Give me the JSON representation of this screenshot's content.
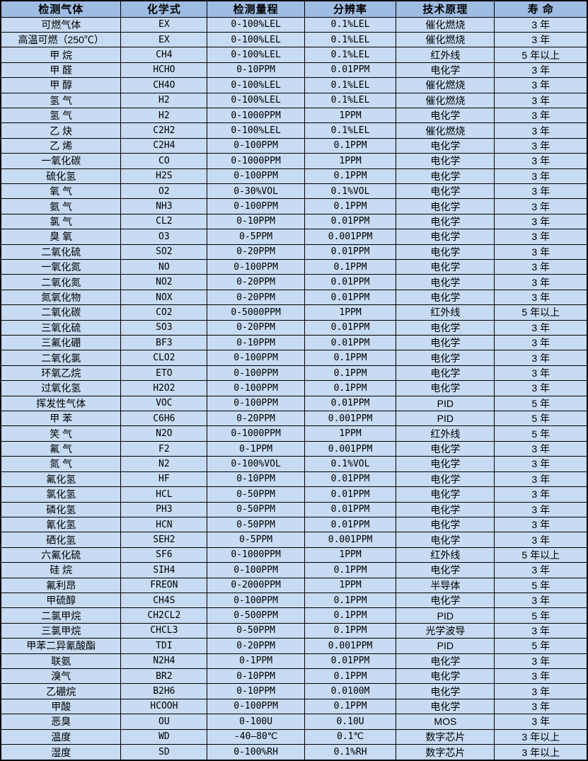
{
  "colors": {
    "header_bg": "#9fbce2",
    "row_bg": "#c7dbf2",
    "border": "#000000",
    "text": "#000000"
  },
  "table": {
    "columns": [
      "检测气体",
      "化学式",
      "检测量程",
      "分辨率",
      "技术原理",
      "寿 命"
    ],
    "rows": [
      [
        "可燃气体",
        "EX",
        "0-100%LEL",
        "0.1%LEL",
        "催化燃烧",
        "3 年"
      ],
      [
        "高温可燃（250℃）",
        "EX",
        "0-100%LEL",
        "0.1%LEL",
        "催化燃烧",
        "3 年"
      ],
      [
        "甲 烷",
        "CH4",
        "0-100%LEL",
        "0.1%LEL",
        "红外线",
        "5 年以上"
      ],
      [
        "甲 醛",
        "HCHO",
        "0-10PPM",
        "0.01PPM",
        "电化学",
        "3 年"
      ],
      [
        "甲 醇",
        "CH4O",
        "0-100%LEL",
        "0.1%LEL",
        "催化燃烧",
        "3 年"
      ],
      [
        "氢 气",
        "H2",
        "0-100%LEL",
        "0.1%LEL",
        "催化燃烧",
        "3 年"
      ],
      [
        "氢 气",
        "H2",
        "0-1000PPM",
        "1PPM",
        "电化学",
        "3 年"
      ],
      [
        "乙 炔",
        "C2H2",
        "0-100%LEL",
        "0.1%LEL",
        "催化燃烧",
        "3 年"
      ],
      [
        "乙 烯",
        "C2H4",
        "0-100PPM",
        "0.1PPM",
        "电化学",
        "3 年"
      ],
      [
        "一氧化碳",
        "CO",
        "0-1000PPM",
        "1PPM",
        "电化学",
        "3 年"
      ],
      [
        "硫化氢",
        "H2S",
        "0-100PPM",
        "0.1PPM",
        "电化学",
        "3 年"
      ],
      [
        "氧 气",
        "O2",
        "0-30%VOL",
        "0.1%VOL",
        "电化学",
        "3 年"
      ],
      [
        "氨 气",
        "NH3",
        "0-100PPM",
        "0.1PPM",
        "电化学",
        "3 年"
      ],
      [
        "氯 气",
        "CL2",
        "0-10PPM",
        "0.01PPM",
        "电化学",
        "3 年"
      ],
      [
        "臭 氧",
        "O3",
        "0-5PPM",
        "0.001PPM",
        "电化学",
        "3 年"
      ],
      [
        "二氧化硫",
        "SO2",
        "0-20PPM",
        "0.01PPM",
        "电化学",
        "3 年"
      ],
      [
        "一氧化氮",
        "NO",
        "0-100PPM",
        "0.1PPM",
        "电化学",
        "3 年"
      ],
      [
        "二氧化氮",
        "NO2",
        "0-20PPM",
        "0.01PPM",
        "电化学",
        "3 年"
      ],
      [
        "氮氧化物",
        "NOX",
        "0-20PPM",
        "0.01PPM",
        "电化学",
        "3 年"
      ],
      [
        "二氧化碳",
        "CO2",
        "0-5000PPM",
        "1PPM",
        "红外线",
        "5 年以上"
      ],
      [
        "三氧化硫",
        "SO3",
        "0-20PPM",
        "0.01PPM",
        "电化学",
        "3 年"
      ],
      [
        "三氟化硼",
        "BF3",
        "0-10PPM",
        "0.01PPM",
        "电化学",
        "3 年"
      ],
      [
        "二氧化氯",
        "CLO2",
        "0-100PPM",
        "0.1PPM",
        "电化学",
        "3 年"
      ],
      [
        "环氧乙烷",
        "ETO",
        "0-100PPM",
        "0.1PPM",
        "电化学",
        "3 年"
      ],
      [
        "过氧化氢",
        "H2O2",
        "0-100PPM",
        "0.1PPM",
        "电化学",
        "3 年"
      ],
      [
        "挥发性气体",
        "VOC",
        "0-100PPM",
        "0.01PPM",
        "PID",
        "5 年"
      ],
      [
        "甲 苯",
        "C6H6",
        "0-20PPM",
        "0.001PPM",
        "PID",
        "5 年"
      ],
      [
        "笑 气",
        "N2O",
        "0-1000PPM",
        "1PPM",
        "红外线",
        "5 年"
      ],
      [
        "氟 气",
        "F2",
        "0-1PPM",
        "0.001PPM",
        "电化学",
        "3 年"
      ],
      [
        "氮 气",
        "N2",
        "0-100%VOL",
        "0.1%VOL",
        "电化学",
        "3 年"
      ],
      [
        "氟化氢",
        "HF",
        "0-10PPM",
        "0.01PPM",
        "电化学",
        "3 年"
      ],
      [
        "氯化氢",
        "HCL",
        "0-50PPM",
        "0.01PPM",
        "电化学",
        "3 年"
      ],
      [
        "磷化氢",
        "PH3",
        "0-50PPM",
        "0.01PPM",
        "电化学",
        "3 年"
      ],
      [
        "氰化氢",
        "HCN",
        "0-50PPM",
        "0.01PPM",
        "电化学",
        "3 年"
      ],
      [
        "硒化氢",
        "SEH2",
        "0-5PPM",
        "0.001PPM",
        "电化学",
        "3 年"
      ],
      [
        "六氟化硫",
        "SF6",
        "0-1000PPM",
        "1PPM",
        "红外线",
        "5 年以上"
      ],
      [
        "硅 烷",
        "SIH4",
        "0-100PPM",
        "0.1PPM",
        "电化学",
        "3 年"
      ],
      [
        "氟利昂",
        "FREON",
        "0-2000PPM",
        "1PPM",
        "半导体",
        "5 年"
      ],
      [
        "甲硫醇",
        "CH4S",
        "0-100PPM",
        "0.1PPM",
        "电化学",
        "3 年"
      ],
      [
        "二氯甲烷",
        "CH2CL2",
        "0-500PPM",
        "0.1PPM",
        "PID",
        "5 年"
      ],
      [
        "三氯甲烷",
        "CHCL3",
        "0-50PPM",
        "0.1PPM",
        "光学波导",
        "3 年"
      ],
      [
        "甲苯二异氰酸酯",
        "TDI",
        "0-20PPM",
        "0.001PPM",
        "PID",
        "5 年"
      ],
      [
        "联氨",
        "N2H4",
        "0-1PPM",
        "0.01PPM",
        "电化学",
        "3 年"
      ],
      [
        "溴气",
        "BR2",
        "0-10PPM",
        "0.1PPM",
        "电化学",
        "3 年"
      ],
      [
        "乙硼烷",
        "B2H6",
        "0-10PPM",
        "0.0100M",
        "电化学",
        "3 年"
      ],
      [
        "甲酸",
        "HCOOH",
        "0-100PPM",
        "0.1PPM",
        "电化学",
        "3 年"
      ],
      [
        "恶臭",
        "OU",
        "0-100U",
        "0.10U",
        "MOS",
        "3 年"
      ],
      [
        "温度",
        "WD",
        "-40—80℃",
        "0.1℃",
        "数字芯片",
        "3 年以上"
      ],
      [
        "湿度",
        "SD",
        "0-100%RH",
        "0.1%RH",
        "数字芯片",
        "3 年以上"
      ]
    ]
  }
}
